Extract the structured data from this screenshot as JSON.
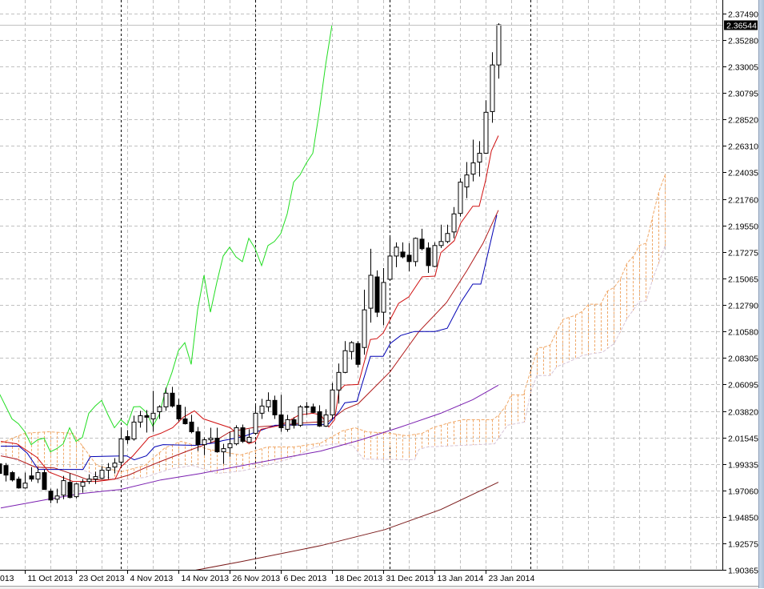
{
  "price_axis": {
    "labels": [
      "2.37490",
      "2.35280",
      "2.33005",
      "2.30795",
      "2.28520",
      "2.26310",
      "2.24035",
      "2.21760",
      "2.19550",
      "2.17275",
      "2.15065",
      "2.12790",
      "2.10580",
      "2.08305",
      "2.06095",
      "2.03820",
      "2.01545",
      "1.99335",
      "1.97060",
      "1.94850",
      "1.92575",
      "1.90365"
    ],
    "current_price": "2.36544"
  },
  "time_axis": {
    "labels": [
      {
        "text": "013",
        "bar": null
      },
      {
        "text": "11 Oct 2013",
        "bar": 4
      },
      {
        "text": "23 Oct 2013",
        "bar": 12
      },
      {
        "text": "4 Nov 2013",
        "bar": 20
      },
      {
        "text": "14 Nov 2013",
        "bar": 28
      },
      {
        "text": "26 Nov 2013",
        "bar": 36
      },
      {
        "text": "6 Dec 2013",
        "bar": 44
      },
      {
        "text": "18 Dec 2013",
        "bar": 52
      },
      {
        "text": "31 Dec 2013",
        "bar": 60
      },
      {
        "text": "13 Jan 2014",
        "bar": 68
      },
      {
        "text": "23 Jan 2014",
        "bar": 76
      }
    ]
  },
  "colors": {
    "background": "#ffffff",
    "grid": "#c0c0c0",
    "bull_body": "#ffffff",
    "bear_body": "#000000",
    "candle_outline": "#000000",
    "tenkan": "#d01010",
    "kijun": "#0000b4",
    "chikou": "#22dd22",
    "ma_red": "#b01818",
    "ma_purple": "#7a1fb0",
    "ma_brown": "#7a1a1a",
    "span_a": "#f0a868",
    "span_b": "#d6c4d8",
    "separator": "#000000",
    "bid_line": "#c0c0c0"
  },
  "chart_data": {
    "type": "candlestick",
    "ylim": [
      1.90365,
      2.38643
    ],
    "grid": true,
    "candles_ohlc": [
      [
        1.9934,
        1.9989,
        1.9798,
        1.9853
      ],
      [
        1.992,
        1.9941,
        1.9785,
        1.9839
      ],
      [
        1.986,
        1.9873,
        1.9785,
        1.9798
      ],
      [
        1.9805,
        1.9826,
        1.9724,
        1.973
      ],
      [
        1.973,
        1.986,
        1.9724,
        1.9771
      ],
      [
        1.9832,
        1.9907,
        1.9784,
        1.9805
      ],
      [
        1.9805,
        1.9901,
        1.9771,
        1.986
      ],
      [
        1.986,
        1.9887,
        1.9717,
        1.9717
      ],
      [
        1.9703,
        1.9724,
        1.9601,
        1.9628
      ],
      [
        1.9635,
        1.9724,
        1.9601,
        1.9662
      ],
      [
        1.9669,
        1.9832,
        1.9635,
        1.9792
      ],
      [
        1.9778,
        1.9853,
        1.9642,
        1.9649
      ],
      [
        1.9656,
        1.9771,
        1.9642,
        1.9764
      ],
      [
        1.9744,
        1.9805,
        1.969,
        1.9778
      ],
      [
        1.9785,
        1.9846,
        1.9764,
        1.9805
      ],
      [
        1.9805,
        1.9867,
        1.9764,
        1.9826
      ],
      [
        1.9812,
        1.9914,
        1.9805,
        1.988
      ],
      [
        1.988,
        1.9941,
        1.9805,
        1.9901
      ],
      [
        1.9907,
        1.9982,
        1.9853,
        1.9941
      ],
      [
        1.9948,
        2.0227,
        1.9914,
        2.0145
      ],
      [
        2.0165,
        2.022,
        2.0104,
        2.0138
      ],
      [
        2.0145,
        2.0343,
        2.0131,
        2.0288
      ],
      [
        2.0288,
        2.0383,
        2.0241,
        2.0342
      ],
      [
        2.0342,
        2.039,
        2.0199,
        2.0329
      ],
      [
        2.0315,
        2.0553,
        2.0206,
        2.0363
      ],
      [
        2.0376,
        2.0431,
        2.0315,
        2.0417
      ],
      [
        2.0417,
        2.058,
        2.0383,
        2.0533
      ],
      [
        2.0533,
        2.0587,
        2.0411,
        2.0424
      ],
      [
        2.0431,
        2.0485,
        2.0295,
        2.0315
      ],
      [
        2.0315,
        2.0417,
        2.0267,
        2.0274
      ],
      [
        2.0288,
        2.0349,
        2.0193,
        2.0206
      ],
      [
        2.0206,
        2.0247,
        2.0043,
        2.0097
      ],
      [
        2.0097,
        2.0159,
        2.0009,
        2.0138
      ],
      [
        2.0138,
        2.024,
        2.0111,
        2.0152
      ],
      [
        2.0152,
        2.024,
        2.0029,
        2.0036
      ],
      [
        2.0036,
        2.0104,
        1.9934,
        2.0063
      ],
      [
        2.007,
        2.0206,
        1.9995,
        2.0104
      ],
      [
        2.0104,
        2.0261,
        2.0091,
        2.024
      ],
      [
        2.024,
        2.0267,
        2.0111,
        2.0125
      ],
      [
        2.0118,
        2.0227,
        2.0111,
        2.0159
      ],
      [
        2.0193,
        2.0444,
        2.0179,
        2.0363
      ],
      [
        2.0363,
        2.0485,
        2.0315,
        2.0424
      ],
      [
        2.0417,
        2.054,
        2.0376,
        2.0472
      ],
      [
        2.0472,
        2.0512,
        2.0315,
        2.0349
      ],
      [
        2.0349,
        2.0519,
        2.0206,
        2.024
      ],
      [
        2.0227,
        2.0349,
        2.0206,
        2.0308
      ],
      [
        2.0308,
        2.0329,
        2.0233,
        2.0261
      ],
      [
        2.0261,
        2.0431,
        2.0247,
        2.0417
      ],
      [
        2.0417,
        2.0458,
        2.0349,
        2.042
      ],
      [
        2.0417,
        2.0444,
        2.0363,
        2.037
      ],
      [
        2.0376,
        2.0431,
        2.0247,
        2.0254
      ],
      [
        2.0254,
        2.0397,
        2.0247,
        2.0349
      ],
      [
        2.0349,
        2.0621,
        2.0315,
        2.056
      ],
      [
        2.056,
        2.0784,
        2.0444,
        2.0709
      ],
      [
        2.0709,
        2.0974,
        2.0702,
        2.0893
      ],
      [
        2.0886,
        2.0974,
        2.0818,
        2.0961
      ],
      [
        2.0954,
        2.0974,
        2.075,
        2.0777
      ],
      [
        2.092,
        2.141,
        2.0859,
        2.1239
      ],
      [
        2.1253,
        2.1756,
        2.1131,
        2.1532
      ],
      [
        2.1518,
        2.1573,
        2.1178,
        2.1219
      ],
      [
        2.1219,
        2.1593,
        2.111,
        2.1471
      ],
      [
        2.1498,
        2.1872,
        2.1484,
        2.1695
      ],
      [
        2.1695,
        2.1811,
        2.16,
        2.177
      ],
      [
        2.1729,
        2.1811,
        2.1675,
        2.1688
      ],
      [
        2.1702,
        2.1804,
        2.1566,
        2.1648
      ],
      [
        2.1648,
        2.1852,
        2.1607,
        2.1845
      ],
      [
        2.1838,
        2.1926,
        2.1743,
        2.1757
      ],
      [
        2.1763,
        2.1811,
        2.1552,
        2.1614
      ],
      [
        2.1607,
        2.1811,
        2.16,
        2.1784
      ],
      [
        2.1784,
        2.1961,
        2.1763,
        2.1818
      ],
      [
        2.1818,
        2.1961,
        2.1804,
        2.1886
      ],
      [
        2.1899,
        2.211,
        2.1845,
        2.2052
      ],
      [
        2.2056,
        2.2355,
        2.2029,
        2.2321
      ],
      [
        2.228,
        2.2491,
        2.2185,
        2.2382
      ],
      [
        2.2389,
        2.2681,
        2.2328,
        2.2484
      ],
      [
        2.2491,
        2.2668,
        2.2368,
        2.2566
      ],
      [
        2.2566,
        2.3015,
        2.2566,
        2.2913
      ],
      [
        2.2919,
        2.3422,
        2.2824,
        2.3314
      ],
      [
        2.3314,
        2.3667,
        2.3198,
        2.3654
      ]
    ],
    "lines": {
      "tenkan": [
        [
          0.25,
          2.0125
        ],
        [
          2.75,
          2.0104
        ],
        [
          5.9,
          1.9989
        ],
        [
          7.75,
          1.9866
        ],
        [
          11.5,
          1.9785
        ],
        [
          15.25,
          1.9785
        ],
        [
          18.1,
          1.9805
        ],
        [
          19,
          1.9907
        ],
        [
          20.9,
          2.0002
        ],
        [
          23.4,
          2.0159
        ],
        [
          25.25,
          2.0193
        ],
        [
          27.1,
          2.024
        ],
        [
          28.75,
          2.0329
        ],
        [
          30.5,
          2.0383
        ],
        [
          31.9,
          2.0315
        ],
        [
          36.1,
          2.024
        ],
        [
          39,
          2.0104
        ],
        [
          40,
          2.0125
        ],
        [
          40.9,
          2.0227
        ],
        [
          44,
          2.0261
        ],
        [
          46.9,
          2.0349
        ],
        [
          49,
          2.0363
        ],
        [
          50.25,
          2.0349
        ],
        [
          51.5,
          2.0247
        ],
        [
          52.4,
          2.0308
        ],
        [
          53.1,
          2.0553
        ],
        [
          54,
          2.0601
        ],
        [
          56.1,
          2.0607
        ],
        [
          58,
          2.0988
        ],
        [
          59,
          2.0995
        ],
        [
          60,
          2.1043
        ],
        [
          62.4,
          2.1294
        ],
        [
          64,
          2.1349
        ],
        [
          66.1,
          2.1519
        ],
        [
          68.1,
          2.1525
        ],
        [
          69,
          2.1723
        ],
        [
          71.1,
          2.1825
        ],
        [
          72.1,
          2.1974
        ],
        [
          74,
          2.2117
        ],
        [
          75,
          2.2117
        ],
        [
          76,
          2.2335
        ],
        [
          76.9,
          2.2586
        ],
        [
          78,
          2.2715
        ]
      ],
      "kijun": [
        [
          0.25,
          2.0084
        ],
        [
          3.1,
          2.0084
        ],
        [
          4.4,
          2.0023
        ],
        [
          6.1,
          1.9887
        ],
        [
          13.1,
          1.9887
        ],
        [
          14.25,
          1.9995
        ],
        [
          19.9,
          2.0002
        ],
        [
          21.1,
          1.9968
        ],
        [
          23,
          2.0002
        ],
        [
          24.25,
          2.0077
        ],
        [
          25.6,
          2.0097
        ],
        [
          30.6,
          2.0091
        ],
        [
          33.6,
          2.0111
        ],
        [
          34.9,
          2.0131
        ],
        [
          38.1,
          2.0165
        ],
        [
          40.6,
          2.0213
        ],
        [
          43.1,
          2.0261
        ],
        [
          50.6,
          2.0267
        ],
        [
          51.5,
          2.0274
        ],
        [
          53.1,
          2.0376
        ],
        [
          54,
          2.0451
        ],
        [
          55.9,
          2.0465
        ],
        [
          58,
          2.0845
        ],
        [
          60,
          2.0845
        ],
        [
          61.1,
          2.0954
        ],
        [
          62.75,
          2.1022
        ],
        [
          64.9,
          2.1056
        ],
        [
          68.1,
          2.1056
        ],
        [
          70,
          2.1083
        ],
        [
          72.1,
          2.1301
        ],
        [
          74,
          2.1457
        ],
        [
          75.25,
          2.1457
        ],
        [
          77.75,
          2.2042
        ]
      ],
      "ma_red": [
        [
          0.25,
          2.0002
        ],
        [
          2.75,
          1.9975
        ],
        [
          5.6,
          1.9907
        ],
        [
          8.6,
          1.99
        ],
        [
          11.9,
          1.9839
        ],
        [
          13.6,
          1.9805
        ],
        [
          16.1,
          1.9798
        ],
        [
          18,
          1.9805
        ],
        [
          20.25,
          1.9839
        ],
        [
          22.75,
          1.99
        ],
        [
          25.25,
          1.9955
        ],
        [
          29.4,
          2.0043
        ],
        [
          33.6,
          2.0125
        ],
        [
          36.1,
          2.0206
        ],
        [
          40.25,
          2.0247
        ],
        [
          44,
          2.0261
        ],
        [
          47.4,
          2.0281
        ],
        [
          51.5,
          2.0295
        ],
        [
          54,
          2.0397
        ],
        [
          56.1,
          2.0444
        ],
        [
          61.1,
          2.0716
        ],
        [
          65.6,
          2.1056
        ],
        [
          69.9,
          2.1301
        ],
        [
          73.1,
          2.1573
        ],
        [
          75.6,
          2.1804
        ],
        [
          78,
          2.2083
        ]
      ],
      "ma_purple": [
        [
          0.25,
          1.956
        ],
        [
          7.75,
          1.9635
        ],
        [
          12.75,
          1.9683
        ],
        [
          19,
          1.9717
        ],
        [
          25.25,
          1.9798
        ],
        [
          31.5,
          1.9853
        ],
        [
          41.5,
          1.9955
        ],
        [
          50.25,
          2.0043
        ],
        [
          56.5,
          2.0138
        ],
        [
          62.75,
          2.0247
        ],
        [
          69,
          2.0363
        ],
        [
          74,
          2.0478
        ],
        [
          78,
          2.0601
        ]
      ],
      "ma_brown": [
        [
          29,
          1.9016
        ],
        [
          37.75,
          1.9105
        ],
        [
          50.25,
          1.9241
        ],
        [
          60.25,
          1.9377
        ],
        [
          69,
          1.9547
        ],
        [
          78,
          1.9778
        ]
      ],
      "span_a": [
        [
          0.25,
          2.0111
        ],
        [
          4,
          2.0193
        ],
        [
          7.75,
          2.0206
        ],
        [
          11.5,
          2.0193
        ],
        [
          13.4,
          2.0057
        ],
        [
          15.25,
          1.9921
        ],
        [
          19,
          1.9866
        ],
        [
          22.75,
          1.9921
        ],
        [
          25.9,
          2.007
        ],
        [
          28.4,
          2.0125
        ],
        [
          32.75,
          2.0057
        ],
        [
          37.75,
          2.0009
        ],
        [
          41.9,
          2.0077
        ],
        [
          46.1,
          2.0077
        ],
        [
          50.25,
          2.0111
        ],
        [
          53.6,
          2.0213
        ],
        [
          55.6,
          2.024
        ],
        [
          57.4,
          2.0206
        ],
        [
          61.1,
          2.0193
        ],
        [
          63.6,
          2.0172
        ],
        [
          66.1,
          2.0193
        ],
        [
          67.75,
          2.024
        ],
        [
          70.25,
          2.0281
        ],
        [
          72.4,
          2.0308
        ],
        [
          77.1,
          2.0308
        ],
        [
          78.1,
          2.0349
        ],
        [
          79.25,
          2.0431
        ],
        [
          80,
          2.0519
        ],
        [
          81.9,
          2.0519
        ],
        [
          83,
          2.0716
        ],
        [
          84.25,
          2.092
        ],
        [
          85,
          2.092
        ],
        [
          86.1,
          2.0941
        ],
        [
          87.1,
          2.1056
        ],
        [
          88.1,
          2.1158
        ],
        [
          89.25,
          2.1179
        ],
        [
          90,
          2.1192
        ],
        [
          91.1,
          2.1226
        ],
        [
          92.1,
          2.1287
        ],
        [
          94,
          2.1287
        ],
        [
          95,
          2.1396
        ],
        [
          96.1,
          2.143
        ],
        [
          97.1,
          2.1505
        ],
        [
          98.1,
          2.1634
        ],
        [
          99.25,
          2.1702
        ],
        [
          100,
          2.1784
        ],
        [
          101.1,
          2.1804
        ],
        [
          102.1,
          2.2029
        ],
        [
          103.1,
          2.2246
        ],
        [
          104.1,
          2.2389
        ]
      ],
      "span_b": [
        [
          0.25,
          2.0023
        ],
        [
          4,
          1.9934
        ],
        [
          7.75,
          1.9887
        ],
        [
          12.75,
          1.9887
        ],
        [
          15.25,
          1.9839
        ],
        [
          19,
          1.9798
        ],
        [
          22.75,
          1.9819
        ],
        [
          26.5,
          1.9887
        ],
        [
          30.25,
          1.9921
        ],
        [
          34,
          1.9853
        ],
        [
          37.75,
          1.9873
        ],
        [
          40.25,
          1.99
        ],
        [
          45.25,
          1.9975
        ],
        [
          49.4,
          2.0077
        ],
        [
          52.4,
          2.0104
        ],
        [
          55.25,
          2.0091
        ],
        [
          56.9,
          1.9975
        ],
        [
          64.9,
          1.9968
        ],
        [
          65.6,
          2.0057
        ],
        [
          66.9,
          2.0077
        ],
        [
          77.4,
          2.0104
        ],
        [
          79.4,
          2.0261
        ],
        [
          82.1,
          2.0288
        ],
        [
          83,
          2.0533
        ],
        [
          84,
          2.0682
        ],
        [
          86.1,
          2.0682
        ],
        [
          87.1,
          2.0757
        ],
        [
          89,
          2.0798
        ],
        [
          91.1,
          2.0852
        ],
        [
          92.4,
          2.0866
        ],
        [
          94.25,
          2.0879
        ],
        [
          96.1,
          2.0954
        ],
        [
          98.1,
          2.1165
        ],
        [
          100,
          2.1308
        ],
        [
          101.1,
          2.1315
        ],
        [
          102.1,
          2.1498
        ],
        [
          104.1,
          2.1791
        ]
      ]
    }
  }
}
